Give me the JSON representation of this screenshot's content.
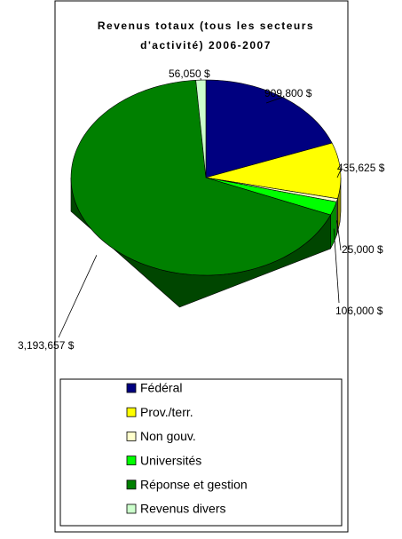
{
  "chart_data": {
    "type": "pie3d",
    "title": [
      "Revenus totaux (tous les secteurs",
      "d'activité) 2006-2007"
    ],
    "categories": [
      "Fédéral",
      "Prov./terr.",
      "Non gouv.",
      "Universités",
      "Réponse et gestion",
      "Revenus divers"
    ],
    "values": [
      909800,
      435625,
      25000,
      106000,
      3193657,
      56050
    ],
    "value_labels": [
      "909,800 $",
      "435,625 $",
      "25,000 $",
      "106,000 $",
      "3,193,657 $",
      "56,050 $"
    ],
    "colors": [
      "#000080",
      "#ffff00",
      "#ffffcc",
      "#00ff00",
      "#008000",
      "#ccffcc"
    ],
    "legend": "bottom"
  }
}
